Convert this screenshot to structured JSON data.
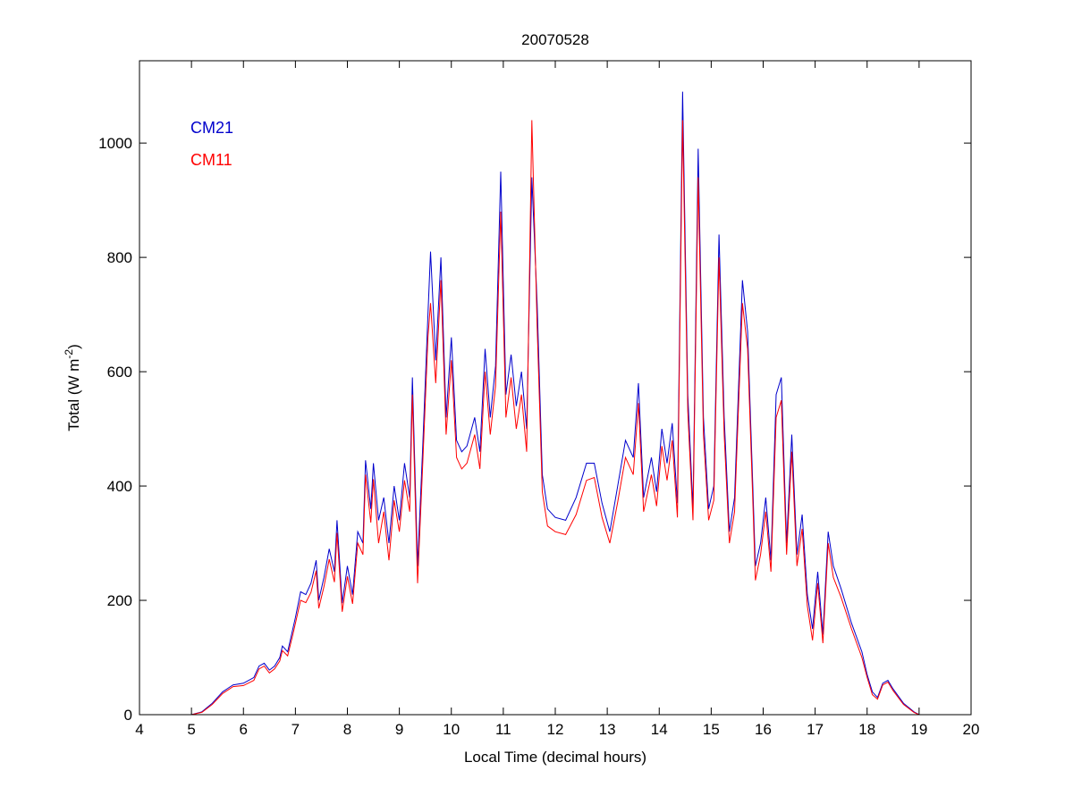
{
  "chart_data": {
    "type": "line",
    "title": "20070528",
    "xlabel": "Local Time (decimal hours)",
    "ylabel_main": "Total (W m",
    "ylabel_sup": "-2",
    "ylabel_end": ")",
    "xlim": [
      4,
      20
    ],
    "ylim": [
      0,
      1144
    ],
    "xticks": [
      4,
      5,
      6,
      7,
      8,
      9,
      10,
      11,
      12,
      13,
      14,
      15,
      16,
      17,
      18,
      19,
      20
    ],
    "yticks": [
      0,
      200,
      400,
      600,
      800,
      1000
    ],
    "grid": false,
    "legend_placement": "top-left",
    "x": [
      5.0,
      5.2,
      5.4,
      5.6,
      5.8,
      6.0,
      6.2,
      6.3,
      6.4,
      6.5,
      6.6,
      6.7,
      6.75,
      6.85,
      6.95,
      7.0,
      7.1,
      7.2,
      7.3,
      7.4,
      7.45,
      7.55,
      7.65,
      7.75,
      7.8,
      7.9,
      8.0,
      8.1,
      8.2,
      8.3,
      8.35,
      8.45,
      8.5,
      8.6,
      8.7,
      8.8,
      8.9,
      9.0,
      9.1,
      9.2,
      9.25,
      9.35,
      9.45,
      9.55,
      9.6,
      9.7,
      9.8,
      9.9,
      10.0,
      10.1,
      10.2,
      10.3,
      10.45,
      10.55,
      10.65,
      10.75,
      10.85,
      10.95,
      11.05,
      11.15,
      11.25,
      11.35,
      11.45,
      11.55,
      11.65,
      11.75,
      11.85,
      12.0,
      12.2,
      12.4,
      12.6,
      12.75,
      12.9,
      13.05,
      13.2,
      13.35,
      13.5,
      13.6,
      13.7,
      13.85,
      13.95,
      14.05,
      14.15,
      14.25,
      14.35,
      14.45,
      14.55,
      14.65,
      14.75,
      14.85,
      14.95,
      15.05,
      15.15,
      15.25,
      15.35,
      15.45,
      15.6,
      15.7,
      15.8,
      15.85,
      15.95,
      16.05,
      16.15,
      16.25,
      16.35,
      16.45,
      16.55,
      16.65,
      16.75,
      16.85,
      16.95,
      17.05,
      17.15,
      17.25,
      17.35,
      17.5,
      17.7,
      17.9,
      18.0,
      18.1,
      18.2,
      18.3,
      18.4,
      18.5,
      18.7,
      18.9,
      19.0
    ],
    "series": [
      {
        "name": "CM21",
        "color": "#0000cc",
        "values": [
          0,
          5,
          20,
          40,
          52,
          55,
          65,
          85,
          90,
          78,
          85,
          100,
          120,
          110,
          150,
          170,
          215,
          210,
          230,
          270,
          200,
          240,
          290,
          250,
          340,
          195,
          260,
          210,
          320,
          300,
          445,
          360,
          440,
          340,
          380,
          300,
          400,
          340,
          440,
          380,
          590,
          260,
          470,
          700,
          810,
          620,
          800,
          520,
          660,
          480,
          460,
          470,
          520,
          460,
          640,
          520,
          610,
          950,
          560,
          630,
          540,
          600,
          500,
          940,
          720,
          420,
          360,
          345,
          340,
          380,
          440,
          440,
          370,
          320,
          400,
          480,
          450,
          580,
          380,
          450,
          390,
          500,
          440,
          510,
          370,
          1090,
          560,
          360,
          990,
          520,
          360,
          400,
          840,
          520,
          320,
          380,
          760,
          670,
          400,
          260,
          300,
          380,
          270,
          560,
          590,
          300,
          490,
          280,
          350,
          210,
          150,
          250,
          140,
          320,
          260,
          220,
          160,
          110,
          70,
          40,
          30,
          55,
          60,
          45,
          20,
          5,
          0
        ]
      },
      {
        "name": "CM11",
        "color": "#ff0000",
        "values": [
          0,
          4,
          18,
          37,
          49,
          51,
          60,
          80,
          85,
          73,
          80,
          94,
          112,
          103,
          140,
          160,
          200,
          196,
          214,
          252,
          186,
          224,
          272,
          232,
          318,
          180,
          242,
          194,
          300,
          280,
          420,
          336,
          412,
          300,
          355,
          270,
          375,
          320,
          410,
          355,
          560,
          230,
          440,
          660,
          720,
          580,
          760,
          490,
          620,
          450,
          430,
          440,
          490,
          430,
          600,
          490,
          575,
          880,
          520,
          590,
          500,
          560,
          460,
          1040,
          680,
          390,
          330,
          320,
          315,
          350,
          410,
          415,
          345,
          300,
          372,
          450,
          420,
          545,
          355,
          420,
          365,
          470,
          410,
          480,
          345,
          1040,
          530,
          340,
          940,
          490,
          340,
          375,
          800,
          490,
          300,
          355,
          720,
          640,
          375,
          235,
          280,
          355,
          250,
          520,
          550,
          280,
          460,
          260,
          325,
          190,
          130,
          230,
          125,
          300,
          240,
          205,
          150,
          100,
          65,
          35,
          27,
          52,
          57,
          42,
          18,
          4,
          0
        ]
      }
    ]
  }
}
